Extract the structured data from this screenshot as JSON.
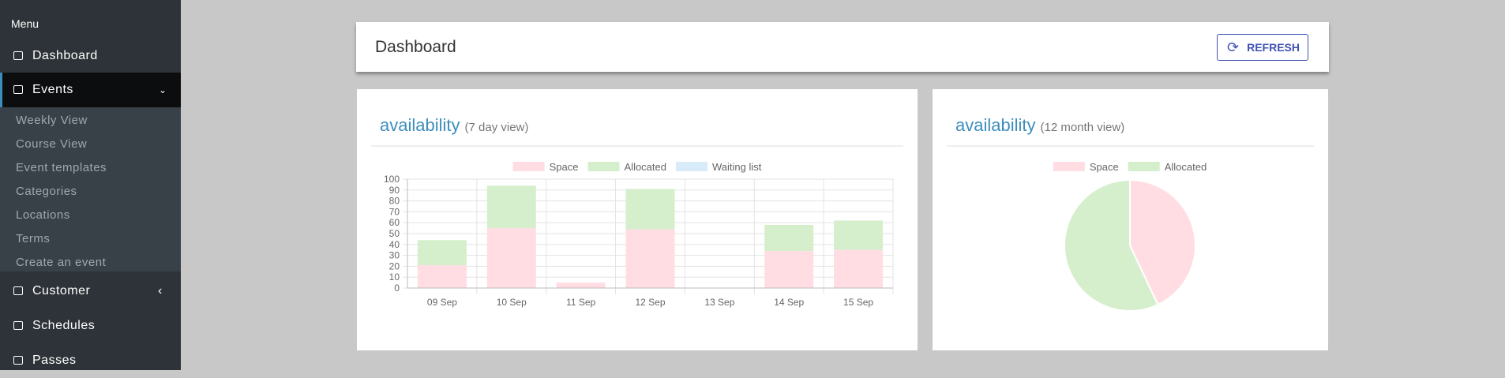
{
  "sidebar": {
    "heading": "Menu",
    "items": [
      "Dashboard",
      "Events",
      "Customer",
      "Schedules",
      "Passes"
    ],
    "subitems": [
      "Weekly View",
      "Course View",
      "Event templates",
      "Categories",
      "Locations",
      "Terms",
      "Create an event"
    ]
  },
  "header": {
    "title": "Dashboard",
    "button": "REFRESH"
  },
  "chart_data": [
    {
      "type": "bar",
      "title": "availability",
      "subtitle": "(7 day view)",
      "stacked": true,
      "categories": [
        "09 Sep",
        "10 Sep",
        "11 Sep",
        "12 Sep",
        "13 Sep",
        "14 Sep",
        "15 Sep"
      ],
      "series": [
        {
          "name": "Space",
          "color": "#ffdde3",
          "values": [
            21,
            55,
            5,
            54,
            0,
            34,
            35
          ]
        },
        {
          "name": "Allocated",
          "color": "#d5efcd",
          "values": [
            23,
            39,
            0,
            37,
            0,
            24,
            27
          ]
        },
        {
          "name": "Waiting list",
          "color": "#d7ebf8",
          "values": [
            0,
            0,
            0,
            0,
            0,
            0,
            0
          ]
        }
      ],
      "ylim": [
        0,
        100
      ],
      "yticks": [
        0,
        10,
        20,
        30,
        40,
        50,
        60,
        70,
        80,
        90,
        100
      ],
      "grid": true
    },
    {
      "type": "pie",
      "title": "availability",
      "subtitle": "(12 month view)",
      "categories": [
        "Space",
        "Allocated"
      ],
      "colors": [
        "#ffdde3",
        "#d5efcd"
      ],
      "values": [
        43,
        57
      ]
    }
  ]
}
